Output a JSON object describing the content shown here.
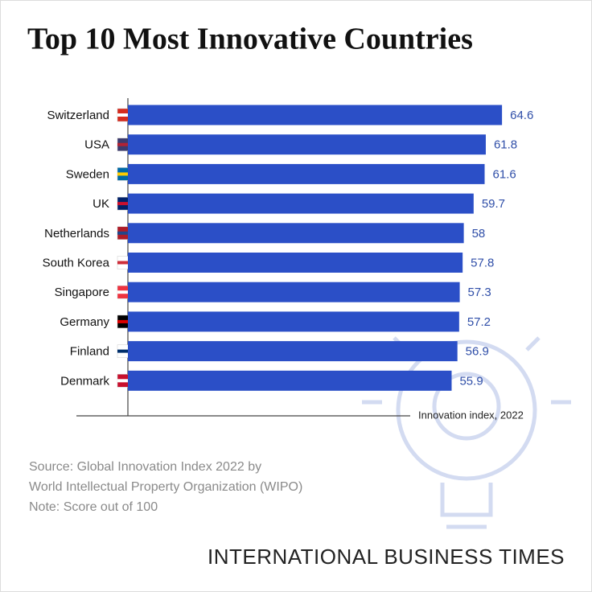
{
  "chart_data": {
    "type": "bar",
    "orientation": "horizontal",
    "title": "Top 10 Most Innovative Countries",
    "categories": [
      "Switzerland",
      "USA",
      "Sweden",
      "UK",
      "Netherlands",
      "South Korea",
      "Singapore",
      "Germany",
      "Finland",
      "Denmark"
    ],
    "values": [
      64.6,
      61.8,
      61.6,
      59.7,
      58,
      57.8,
      57.3,
      57.2,
      56.9,
      55.9
    ],
    "color": "#2b4fc7",
    "xlim": [
      0,
      70
    ],
    "x_label": "Innovation index, 2022",
    "notes": [
      "Source: Global Innovation Index 2022 by",
      "World Intellectual Property Organization (WIPO)",
      "Note: Score out of 100"
    ],
    "brand": "INTERNATIONAL BUSINESS TIMES"
  }
}
